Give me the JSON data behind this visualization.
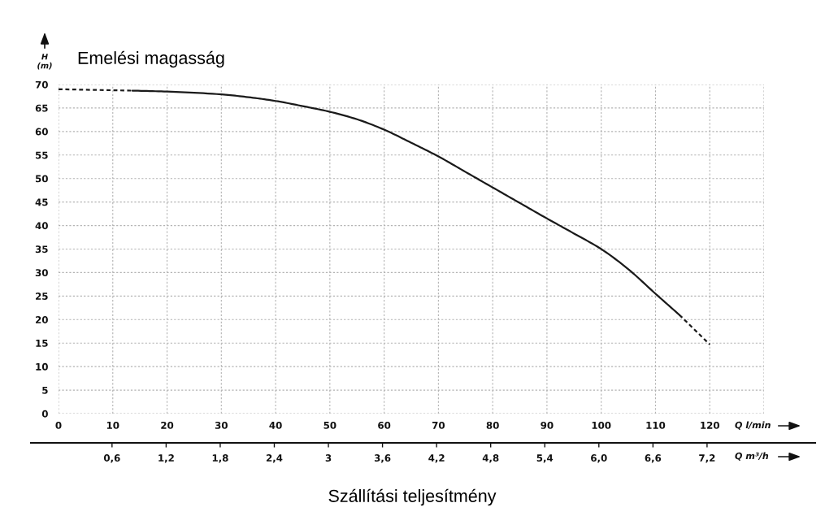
{
  "chart_data": {
    "type": "line",
    "xlabel": "Q l/min",
    "ylabel": "H\n(m)",
    "x2label": "Q m³/h",
    "annotations": [
      "Emelési magasság",
      "Szállítási teljesítmény"
    ],
    "xlim": [
      0,
      130
    ],
    "xticks": [
      0,
      10,
      20,
      30,
      40,
      50,
      60,
      70,
      80,
      90,
      100,
      110,
      120,
      {
        "value": 130,
        "label": null
      }
    ],
    "ylim": [
      0,
      70
    ],
    "yticks": [
      0,
      5,
      10,
      15,
      20,
      25,
      30,
      35,
      40,
      45,
      50,
      55,
      60,
      65,
      70
    ],
    "x2lim": [
      -0.3,
      8.4
    ],
    "x2ticks": [
      {
        "value": 0.6,
        "label": "0,6"
      },
      {
        "value": 1.2,
        "label": "1,2"
      },
      {
        "value": 1.8,
        "label": "1,8"
      },
      {
        "value": 2.4,
        "label": "2,4"
      },
      3,
      {
        "value": 3.6,
        "label": "3,6"
      },
      {
        "value": 4.2,
        "label": "4,2"
      },
      {
        "value": 4.8,
        "label": "4,8"
      },
      {
        "value": 5.4,
        "label": "5,4"
      },
      {
        "value": 6.0,
        "label": "6,0"
      },
      {
        "value": 6.6,
        "label": "6,6"
      },
      {
        "value": 7.2,
        "label": "7,2"
      }
    ],
    "grid": true,
    "series": [
      {
        "color": "#1a1a1a",
        "line_style": "dashed",
        "x": [
          0,
          13.6
        ],
        "values": [
          69,
          68.7
        ]
      },
      {
        "color": "#1a1a1a",
        "line_style": "solid",
        "x": [
          13.6,
          20,
          30,
          35,
          40,
          45,
          50,
          55,
          60,
          65,
          70,
          75,
          80,
          85,
          90,
          95,
          100,
          105,
          110,
          114.4
        ],
        "values": [
          68.7,
          68.5,
          67.9,
          67.3,
          66.5,
          65.4,
          64.2,
          62.6,
          60.4,
          57.6,
          54.7,
          51.4,
          48.1,
          44.8,
          41.5,
          38.3,
          35,
          30.7,
          25.5,
          21
        ]
      },
      {
        "color": "#1a1a1a",
        "line_style": "dashed",
        "x": [
          114.4,
          120
        ],
        "values": [
          21,
          14.7
        ]
      }
    ]
  }
}
